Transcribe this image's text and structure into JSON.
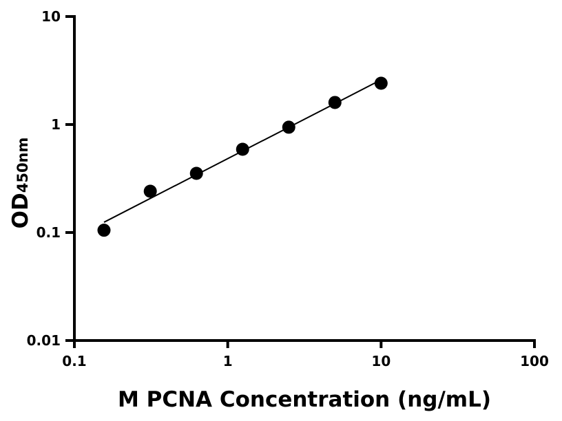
{
  "chart_data": {
    "type": "scatter",
    "xlabel": "M PCNA Concentration (ng/mL)",
    "ylabel": "OD",
    "ylabel_subscript": "450nm",
    "x_scale": "log",
    "y_scale": "log",
    "xlim": [
      0.1,
      100
    ],
    "ylim": [
      0.01,
      10
    ],
    "x_ticks": [
      "0.1",
      "1",
      "10",
      "100"
    ],
    "y_ticks": [
      "0.01",
      "0.1",
      "1",
      "10"
    ],
    "grid": false,
    "legend": "none",
    "fit_line": "linear fit in log-log space",
    "points": {
      "x": [
        0.156,
        0.3125,
        0.625,
        1.25,
        2.5,
        5,
        10
      ],
      "y": [
        0.105,
        0.241,
        0.353,
        0.59,
        0.944,
        1.6,
        2.41
      ]
    },
    "colors": {
      "marker": "#000000",
      "line": "#000000",
      "axis": "#000000"
    }
  }
}
